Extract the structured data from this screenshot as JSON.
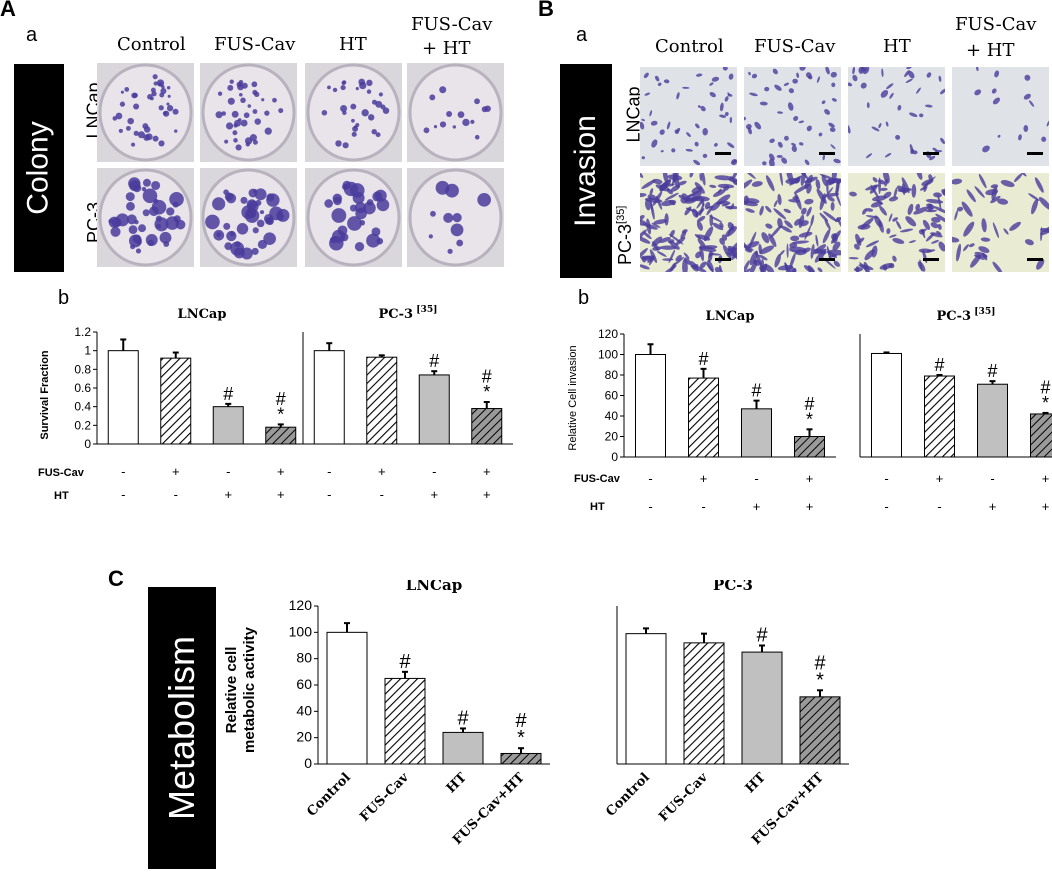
{
  "panels": {
    "A": {
      "letter": "A",
      "sub_a": "a",
      "sub_b": "b",
      "side_label": "Colony",
      "columns": [
        "Control",
        "FUS-Cav",
        "HT",
        "FUS-Cav\n+ HT"
      ],
      "col1": "Control",
      "col2": "FUS-Cav",
      "col3": "HT",
      "col4a": "FUS-Cav",
      "col4b": "+ HT",
      "rows": [
        "LNCap",
        "PC-3"
      ]
    },
    "B": {
      "letter": "B",
      "sub_a": "a",
      "sub_b": "b",
      "side_label": "Invasion",
      "col1": "Control",
      "col2": "FUS-Cav",
      "col3": "HT",
      "col4a": "FUS-Cav",
      "col4b": "+ HT",
      "rows": [
        "LNCap",
        "PC-3"
      ],
      "row2_sup": "[35]"
    },
    "C": {
      "letter": "C",
      "side_label": "Metabolism"
    }
  },
  "colors": {
    "white_bar": "#ffffff",
    "gray_bar": "#c0c0c0",
    "hatch_light": "#ffffff",
    "hatch_dark": "#9a9a9a",
    "stain": "#4a3c9c",
    "background_invasion": "#e9ecd2"
  },
  "chart_data": [
    {
      "id": "A-b",
      "type": "bar",
      "ylabel": "Survival Fraction",
      "ylim": [
        0,
        1.2
      ],
      "yticks": [
        "0",
        "0.2",
        "0.4",
        "0.6",
        "0.8",
        "1",
        "1.2"
      ],
      "groups": [
        {
          "title": "LNCap",
          "sup": "",
          "values": [
            1.0,
            0.92,
            0.4,
            0.18
          ],
          "errors": [
            0.12,
            0.06,
            0.03,
            0.03
          ],
          "marks": [
            "",
            "",
            "#",
            "#\n*"
          ]
        },
        {
          "title": "PC-3",
          "sup": "[35]",
          "values": [
            1.0,
            0.93,
            0.74,
            0.38
          ],
          "errors": [
            0.08,
            0.02,
            0.04,
            0.07
          ],
          "marks": [
            "",
            "",
            "#",
            "#\n*"
          ]
        }
      ],
      "conditions": {
        "FUS-Cav": [
          "-",
          "+",
          "-",
          "+"
        ],
        "HT": [
          "-",
          "-",
          "+",
          "+"
        ]
      },
      "condition_labels": [
        "FUS-Cav",
        "HT"
      ]
    },
    {
      "id": "B-b",
      "type": "bar",
      "ylabel": "Relative Cell invasion",
      "ylim": [
        0,
        120
      ],
      "yticks": [
        "0",
        "20",
        "40",
        "60",
        "80",
        "100",
        "120"
      ],
      "groups": [
        {
          "title": "LNCap",
          "sup": "",
          "values": [
            100,
            77,
            47,
            20
          ],
          "errors": [
            10,
            9,
            8,
            7
          ],
          "marks": [
            "",
            "#",
            "#",
            "#\n*"
          ]
        },
        {
          "title": "PC-3",
          "sup": "[35]",
          "values": [
            101,
            79,
            71,
            42
          ],
          "errors": [
            1,
            1,
            3,
            1
          ],
          "marks": [
            "",
            "#",
            "#",
            "#\n*"
          ]
        }
      ],
      "conditions": {
        "FUS-Cav": [
          "-",
          "+",
          "-",
          "+"
        ],
        "HT": [
          "-",
          "-",
          "+",
          "+"
        ]
      },
      "condition_labels": [
        "FUS-Cav",
        "HT"
      ]
    },
    {
      "id": "C",
      "type": "bar",
      "ylabel": "Relative cell\nmetabolic activity",
      "ylabel_line1": "Relative cell",
      "ylabel_line2": "metabolic activity",
      "ylim": [
        0,
        120
      ],
      "yticks": [
        "0",
        "20",
        "40",
        "60",
        "80",
        "100",
        "120"
      ],
      "categories": [
        "Control",
        "FUS-Cav",
        "HT",
        "FUS-Cav+HT"
      ],
      "groups": [
        {
          "title": "LNCap",
          "sup": "",
          "values": [
            100,
            65,
            24,
            8
          ],
          "errors": [
            7,
            5,
            3,
            4
          ],
          "marks": [
            "",
            "#",
            "#",
            "#\n*"
          ]
        },
        {
          "title": "PC-3",
          "sup": "",
          "values": [
            99,
            92,
            85,
            51
          ],
          "errors": [
            4,
            7,
            5,
            5
          ],
          "marks": [
            "",
            "",
            "#",
            "#\n*"
          ]
        }
      ]
    }
  ]
}
